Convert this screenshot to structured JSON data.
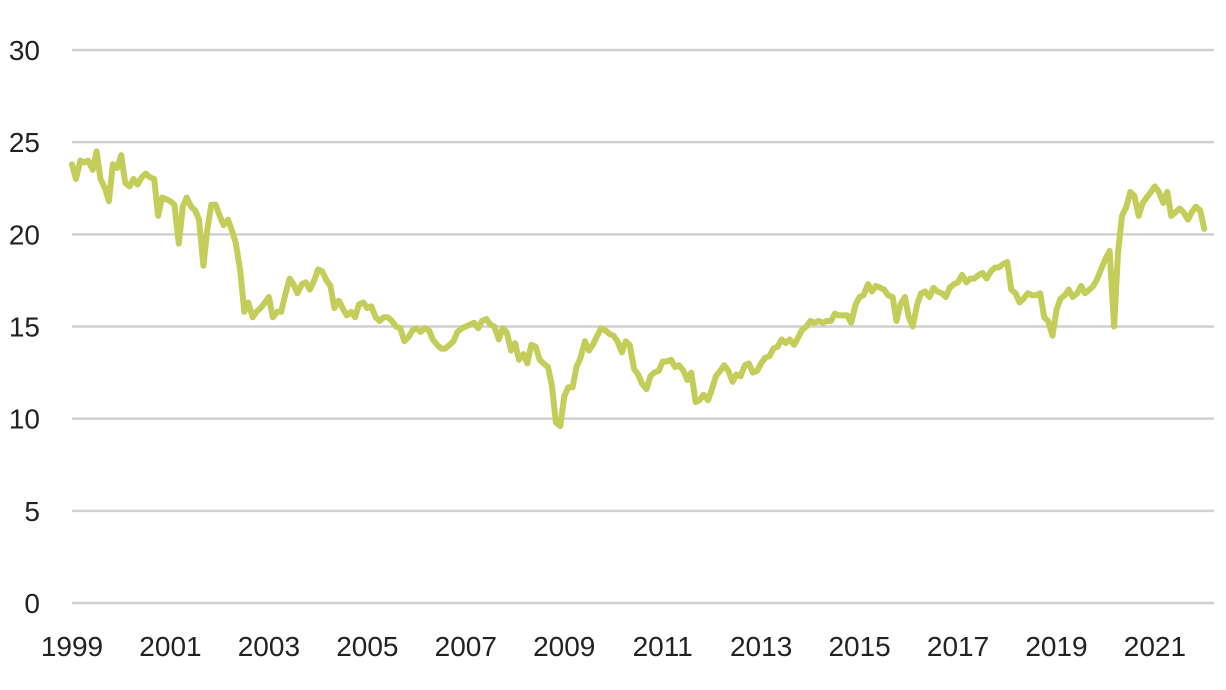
{
  "chart_data": {
    "type": "line",
    "title": "",
    "xlabel": "",
    "ylabel": "",
    "xlim": [
      1999.0,
      2022.2
    ],
    "ylim": [
      0,
      30
    ],
    "grid": true,
    "y_ticks": [
      0,
      5,
      10,
      15,
      20,
      25,
      30
    ],
    "x_ticks": [
      1999,
      2001,
      2003,
      2005,
      2007,
      2009,
      2011,
      2013,
      2015,
      2017,
      2019,
      2021
    ],
    "y_tick_labels": [
      "0",
      "5",
      "10",
      "15",
      "20",
      "25",
      "30"
    ],
    "x_tick_labels": [
      "1999",
      "2001",
      "2003",
      "2005",
      "2007",
      "2009",
      "2011",
      "2013",
      "2015",
      "2017",
      "2019",
      "2021"
    ],
    "colors": {
      "line": "#c4cc5a",
      "grid": "#d0d0d0",
      "text": "#222222"
    },
    "series": [
      {
        "x": [
          1999.0,
          1999.08,
          1999.17,
          1999.25,
          1999.33,
          1999.42,
          1999.5,
          1999.58,
          1999.67,
          1999.75,
          1999.83,
          1999.92,
          2000.0,
          2000.08,
          2000.17,
          2000.25,
          2000.33,
          2000.42,
          2000.5,
          2000.58,
          2000.67,
          2000.75,
          2000.83,
          2000.92,
          2001.0,
          2001.08,
          2001.17,
          2001.25,
          2001.33,
          2001.42,
          2001.5,
          2001.58,
          2001.67,
          2001.75,
          2001.83,
          2001.92,
          2002.0,
          2002.08,
          2002.17,
          2002.25,
          2002.33,
          2002.42,
          2002.5,
          2002.58,
          2002.67,
          2002.75,
          2002.83,
          2002.92,
          2003.0,
          2003.08,
          2003.17,
          2003.25,
          2003.33,
          2003.42,
          2003.5,
          2003.58,
          2003.67,
          2003.75,
          2003.83,
          2003.92,
          2004.0,
          2004.08,
          2004.17,
          2004.25,
          2004.33,
          2004.42,
          2004.5,
          2004.58,
          2004.67,
          2004.75,
          2004.83,
          2004.92,
          2005.0,
          2005.08,
          2005.17,
          2005.25,
          2005.33,
          2005.42,
          2005.5,
          2005.58,
          2005.67,
          2005.75,
          2005.83,
          2005.92,
          2006.0,
          2006.08,
          2006.17,
          2006.25,
          2006.33,
          2006.42,
          2006.5,
          2006.58,
          2006.67,
          2006.75,
          2006.83,
          2006.92,
          2007.0,
          2007.08,
          2007.17,
          2007.25,
          2007.33,
          2007.42,
          2007.5,
          2007.58,
          2007.67,
          2007.75,
          2007.83,
          2007.92,
          2008.0,
          2008.08,
          2008.17,
          2008.25,
          2008.33,
          2008.42,
          2008.5,
          2008.58,
          2008.67,
          2008.75,
          2008.83,
          2008.92,
          2009.0,
          2009.08,
          2009.17,
          2009.25,
          2009.33,
          2009.42,
          2009.5,
          2009.58,
          2009.67,
          2009.75,
          2009.83,
          2009.92,
          2010.0,
          2010.08,
          2010.17,
          2010.25,
          2010.33,
          2010.42,
          2010.5,
          2010.58,
          2010.67,
          2010.75,
          2010.83,
          2010.92,
          2011.0,
          2011.08,
          2011.17,
          2011.25,
          2011.33,
          2011.42,
          2011.5,
          2011.58,
          2011.67,
          2011.75,
          2011.83,
          2011.92,
          2012.0,
          2012.08,
          2012.17,
          2012.25,
          2012.33,
          2012.42,
          2012.5,
          2012.58,
          2012.67,
          2012.75,
          2012.83,
          2012.92,
          2013.0,
          2013.08,
          2013.17,
          2013.25,
          2013.33,
          2013.42,
          2013.5,
          2013.58,
          2013.67,
          2013.75,
          2013.83,
          2013.92,
          2014.0,
          2014.08,
          2014.17,
          2014.25,
          2014.33,
          2014.42,
          2014.5,
          2014.58,
          2014.67,
          2014.75,
          2014.83,
          2014.92,
          2015.0,
          2015.08,
          2015.17,
          2015.25,
          2015.33,
          2015.42,
          2015.5,
          2015.58,
          2015.67,
          2015.75,
          2015.83,
          2015.92,
          2016.0,
          2016.08,
          2016.17,
          2016.25,
          2016.33,
          2016.42,
          2016.5,
          2016.58,
          2016.67,
          2016.75,
          2016.83,
          2016.92,
          2017.0,
          2017.08,
          2017.17,
          2017.25,
          2017.33,
          2017.42,
          2017.5,
          2017.58,
          2017.67,
          2017.75,
          2017.83,
          2017.92,
          2018.0,
          2018.08,
          2018.17,
          2018.25,
          2018.33,
          2018.42,
          2018.5,
          2018.58,
          2018.67,
          2018.75,
          2018.83,
          2018.92,
          2019.0,
          2019.08,
          2019.17,
          2019.25,
          2019.33,
          2019.42,
          2019.5,
          2019.58,
          2019.67,
          2019.75,
          2019.83,
          2019.92,
          2020.0,
          2020.08,
          2020.17,
          2020.25,
          2020.33,
          2020.42,
          2020.5,
          2020.58,
          2020.67,
          2020.75,
          2020.83,
          2020.92,
          2021.0,
          2021.08,
          2021.17,
          2021.25,
          2021.33,
          2021.42,
          2021.5,
          2021.58,
          2021.67,
          2021.75,
          2021.83,
          2021.92,
          2022.0
        ],
        "values": [
          23.8,
          23.0,
          24.0,
          23.9,
          24.0,
          23.5,
          24.5,
          23.0,
          22.5,
          21.8,
          23.8,
          23.6,
          24.3,
          22.8,
          22.6,
          23.0,
          22.7,
          23.1,
          23.3,
          23.1,
          23.0,
          21.0,
          22.0,
          21.9,
          21.8,
          21.6,
          19.5,
          21.5,
          22.0,
          21.5,
          21.3,
          20.8,
          18.3,
          20.3,
          21.6,
          21.6,
          21.0,
          20.5,
          20.8,
          20.2,
          19.5,
          18.0,
          15.8,
          16.3,
          15.5,
          15.8,
          16.0,
          16.3,
          16.6,
          15.5,
          15.8,
          15.8,
          16.7,
          17.6,
          17.3,
          16.8,
          17.3,
          17.4,
          17.0,
          17.5,
          18.1,
          18.0,
          17.5,
          17.2,
          16.0,
          16.4,
          16.0,
          15.6,
          15.8,
          15.5,
          16.2,
          16.3,
          16.0,
          16.1,
          15.5,
          15.3,
          15.5,
          15.5,
          15.3,
          15.0,
          14.9,
          14.2,
          14.4,
          14.8,
          14.9,
          14.7,
          14.9,
          14.8,
          14.3,
          14.0,
          13.8,
          13.8,
          14.0,
          14.2,
          14.7,
          14.9,
          15.0,
          15.1,
          15.2,
          14.9,
          15.3,
          15.4,
          15.1,
          15.0,
          14.3,
          14.9,
          14.7,
          13.7,
          14.1,
          13.2,
          13.5,
          13.0,
          14.0,
          13.9,
          13.2,
          13.0,
          12.8,
          11.8,
          9.8,
          9.6,
          11.2,
          11.7,
          11.7,
          12.8,
          13.3,
          14.2,
          13.7,
          14.0,
          14.5,
          14.9,
          14.8,
          14.6,
          14.5,
          14.2,
          13.6,
          14.2,
          14.0,
          12.7,
          12.4,
          11.9,
          11.6,
          12.3,
          12.5,
          12.6,
          13.1,
          13.1,
          13.2,
          12.8,
          12.9,
          12.6,
          12.1,
          12.5,
          10.9,
          11.0,
          11.3,
          11.0,
          11.6,
          12.3,
          12.6,
          12.9,
          12.6,
          12.0,
          12.4,
          12.3,
          12.9,
          13.0,
          12.5,
          12.6,
          13.0,
          13.3,
          13.4,
          13.8,
          13.9,
          14.3,
          14.1,
          14.3,
          14.0,
          14.4,
          14.8,
          15.0,
          15.3,
          15.2,
          15.3,
          15.2,
          15.3,
          15.3,
          15.7,
          15.6,
          15.6,
          15.6,
          15.2,
          16.2,
          16.6,
          16.7,
          17.3,
          16.9,
          17.2,
          17.1,
          17.0,
          16.7,
          16.6,
          15.3,
          16.2,
          16.6,
          15.5,
          15.0,
          16.2,
          16.8,
          16.9,
          16.6,
          17.1,
          16.9,
          16.8,
          16.6,
          17.1,
          17.3,
          17.4,
          17.8,
          17.4,
          17.6,
          17.6,
          17.8,
          17.9,
          17.6,
          18.0,
          18.2,
          18.2,
          18.4,
          18.5,
          17.0,
          16.8,
          16.3,
          16.5,
          16.8,
          16.7,
          16.7,
          16.8,
          15.5,
          15.3,
          14.5,
          15.9,
          16.5,
          16.7,
          17.0,
          16.6,
          16.8,
          17.2,
          16.8,
          17.0,
          17.2,
          17.6,
          18.2,
          18.7,
          19.1,
          15.0,
          19.0,
          21.0,
          21.5,
          22.3,
          22.1,
          21.0,
          21.7,
          22.0,
          22.3,
          22.6,
          22.3,
          21.7,
          22.3,
          21.0,
          21.2,
          21.4,
          21.2,
          20.8,
          21.2,
          21.5,
          21.3,
          20.3
        ]
      }
    ]
  }
}
